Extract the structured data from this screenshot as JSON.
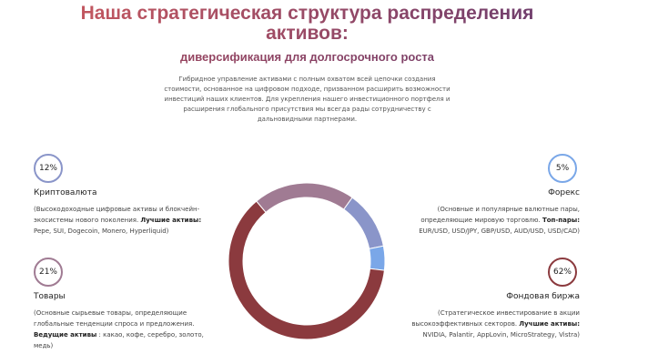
{
  "header": {
    "title": "Наша стратегическая структура распределения активов:",
    "subtitle": "диверсификация для долгосрочного роста",
    "paragraph": "Гибридное управление активами с полным охватом всей цепочки создания стоимости, основанное на цифровом подходе, призванном расширить возможности инвестиций наших клиентов. Для укрепления нашего инвестиционного портфеля и расширения глобального присутствия мы всегда рады сотрудничеству с дальновидными партнерами."
  },
  "chart_data": {
    "type": "pie",
    "donut": true,
    "categories": [
      "Товары",
      "Криптовалюта",
      "Форекс",
      "Фондовая биржа"
    ],
    "values": [
      21,
      12,
      5,
      62
    ],
    "value_labels": [
      "21%",
      "12%",
      "5%",
      "62%"
    ],
    "colors": [
      "#a07b93",
      "#8a95c9",
      "#7aa7e8",
      "#8b3a3e"
    ]
  },
  "cards": [
    {
      "text": "(Основные сырьевые товары, определяющие глобальные тенденции спроса и предложения. ",
      "bold": "Ведущие активы",
      "rest": " : какао, кофе, серебро, золото, медь)"
    },
    {
      "text": "(Высокодоходные цифровые активы и блокчейн-экосистемы нового поколения. ",
      "bold": "Лучшие активы:",
      "rest": " Pepe, SUI, Dogecoin, Monero, Hyperliquid)"
    },
    {
      "text": "(Основные и популярные валютные пары, определяющие мировую торговлю. ",
      "bold": "Топ-пары:",
      "rest": " EUR/USD, USD/JPY, GBP/USD, AUD/USD, USD/CAD)"
    },
    {
      "text": "(Стратегическое инвестирование в акции высокоэффективных секторов. ",
      "bold": "Лучшие активы:",
      "rest": " NVIDIA, Palantir, AppLovin, MicroStrategy, Vistra)"
    }
  ]
}
